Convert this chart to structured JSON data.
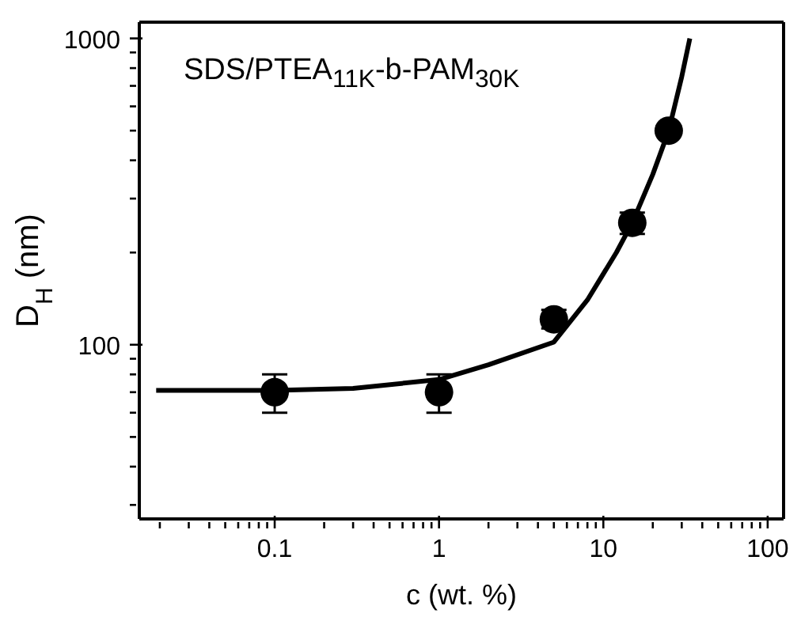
{
  "chart_data": {
    "type": "scatter",
    "xlabel": "c (wt. %)",
    "ylabel": "D$_{H}$ (nm)",
    "annotations": [
      "SDS/PTEA$_{11K}$-b-PAM$_{30K}$"
    ],
    "log": "xy",
    "marker": "circle",
    "xlim": [
      0.015,
      125
    ],
    "ylim": [
      27,
      1130
    ],
    "xticks": [
      {
        "value": 0.02,
        "label": null
      },
      {
        "value": 0.03,
        "label": null
      },
      {
        "value": 0.04,
        "label": null
      },
      {
        "value": 0.05,
        "label": null
      },
      {
        "value": 0.06,
        "label": null
      },
      {
        "value": 0.07,
        "label": null
      },
      {
        "value": 0.08,
        "label": null
      },
      {
        "value": 0.09,
        "label": null
      },
      0.1,
      {
        "value": 0.2,
        "label": null
      },
      {
        "value": 0.3,
        "label": null
      },
      {
        "value": 0.4,
        "label": null
      },
      {
        "value": 0.5,
        "label": null
      },
      {
        "value": 0.6,
        "label": null
      },
      {
        "value": 0.7,
        "label": null
      },
      {
        "value": 0.8,
        "label": null
      },
      {
        "value": 0.9,
        "label": null
      },
      1,
      {
        "value": 2,
        "label": null
      },
      {
        "value": 3,
        "label": null
      },
      {
        "value": 4,
        "label": null
      },
      {
        "value": 5,
        "label": null
      },
      {
        "value": 6,
        "label": null
      },
      {
        "value": 7,
        "label": null
      },
      {
        "value": 8,
        "label": null
      },
      {
        "value": 9,
        "label": null
      },
      10,
      {
        "value": 20,
        "label": null
      },
      {
        "value": 30,
        "label": null
      },
      {
        "value": 40,
        "label": null
      },
      {
        "value": 50,
        "label": null
      },
      {
        "value": 60,
        "label": null
      },
      {
        "value": 70,
        "label": null
      },
      {
        "value": 80,
        "label": null
      },
      {
        "value": 90,
        "label": null
      },
      100
    ],
    "yticks": [
      {
        "value": 30,
        "label": null
      },
      {
        "value": 40,
        "label": null
      },
      {
        "value": 50,
        "label": null
      },
      {
        "value": 60,
        "label": null
      },
      {
        "value": 70,
        "label": null
      },
      {
        "value": 80,
        "label": null
      },
      {
        "value": 90,
        "label": null
      },
      100,
      {
        "value": 200,
        "label": null
      },
      {
        "value": 300,
        "label": null
      },
      {
        "value": 400,
        "label": null
      },
      {
        "value": 500,
        "label": null
      },
      {
        "value": 600,
        "label": null
      },
      {
        "value": 700,
        "label": null
      },
      {
        "value": 800,
        "label": null
      },
      {
        "value": 900,
        "label": null
      },
      1000
    ],
    "series": [
      {
        "color": "#000000",
        "x": [
          0.1,
          1,
          5,
          15,
          25
        ],
        "values": [
          70,
          70,
          121,
          250,
          500
        ],
        "errors": [
          [
            60,
            80
          ],
          [
            60,
            80
          ],
          [
            113,
            130
          ],
          [
            230,
            270
          ],
          null
        ]
      },
      {
        "type": "line",
        "color": "#000000",
        "marker": "none",
        "x": [
          0.019,
          0.1,
          0.3,
          1,
          2,
          5,
          8,
          12,
          15,
          20,
          25,
          30,
          33.6
        ],
        "values": [
          71,
          71,
          72,
          77,
          86,
          102,
          140,
          200,
          250,
          360,
          500,
          750,
          1000
        ]
      }
    ]
  }
}
